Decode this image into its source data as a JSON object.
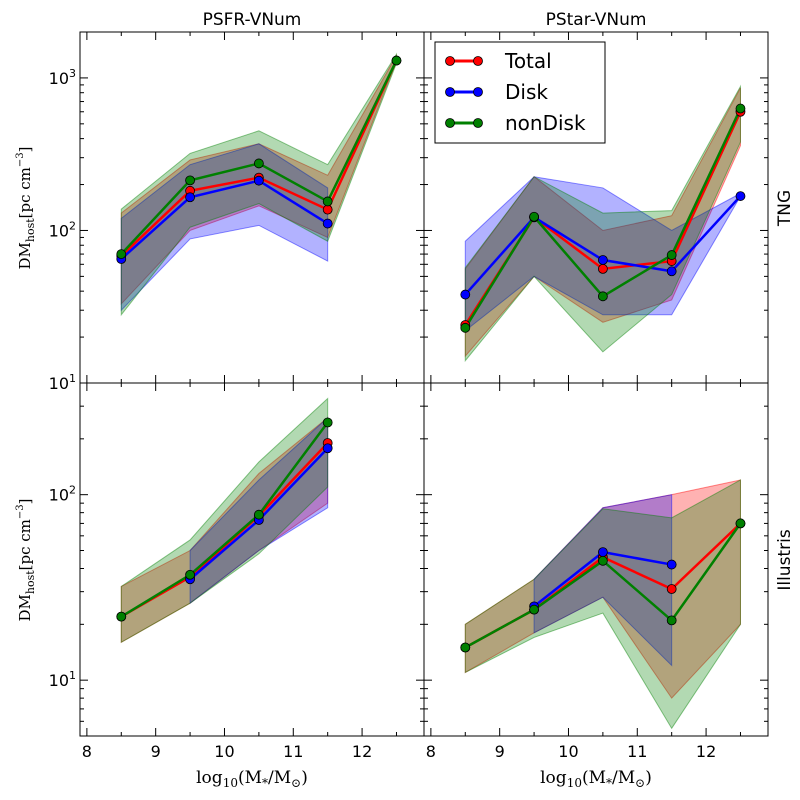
{
  "figure": {
    "col_titles": [
      "PSFR-VNum",
      "PStar-VNum"
    ],
    "row_labels": [
      "TNG",
      "Illustris"
    ],
    "xlabel_main": "log",
    "xlabel_sub": "10",
    "xlabel_rest": "(M",
    "xlabel_star": "*",
    "xlabel_slash": "/M",
    "xlabel_sun": "⊙",
    "xlabel_close": ")",
    "ylabel_main": "DM",
    "ylabel_sub": "host",
    "ylabel_unit": "[pc cm",
    "ylabel_exp": "−3",
    "ylabel_close": "]"
  },
  "legend": {
    "entries": [
      {
        "label": "Total",
        "color": "#ff0000"
      },
      {
        "label": "Disk",
        "color": "#0000ff"
      },
      {
        "label": "nonDisk",
        "color": "#008000"
      }
    ]
  },
  "chart_data": [
    {
      "type": "line",
      "panel": "TNG / PSFR-VNum",
      "xlim": [
        7.9,
        12.9
      ],
      "ylim": [
        10,
        2000
      ],
      "yscale": "log",
      "xticks": [
        8,
        9,
        10,
        11,
        12
      ],
      "ytick_labels": [
        {
          "base": "10",
          "exp": "1",
          "value": 10
        },
        {
          "base": "10",
          "exp": "2",
          "value": 100
        },
        {
          "base": "10",
          "exp": "3",
          "value": 1000
        }
      ],
      "series": [
        {
          "name": "Total",
          "color": "#ff0000",
          "x": [
            8.5,
            9.5,
            10.5,
            11.5,
            12.5
          ],
          "values": [
            68,
            182,
            222,
            137,
            1300
          ],
          "band_low": [
            33,
            100,
            145,
            90,
            1300
          ],
          "band_high": [
            130,
            290,
            370,
            230,
            1400
          ]
        },
        {
          "name": "Disk",
          "color": "#0000ff",
          "x": [
            8.5,
            9.5,
            10.5,
            11.5
          ],
          "values": [
            65,
            165,
            212,
            111
          ],
          "band_low": [
            30,
            88,
            108,
            63
          ],
          "band_high": [
            120,
            270,
            370,
            190
          ]
        },
        {
          "name": "nonDisk",
          "color": "#008000",
          "x": [
            8.5,
            9.5,
            10.5,
            11.5,
            12.5
          ],
          "values": [
            70,
            213,
            275,
            155,
            1300
          ],
          "band_low": [
            28,
            105,
            150,
            85,
            1250
          ],
          "band_high": [
            138,
            320,
            450,
            270,
            1430
          ]
        }
      ]
    },
    {
      "type": "line",
      "panel": "TNG / PStar-VNum",
      "xlim": [
        7.9,
        12.9
      ],
      "ylim": [
        10,
        2000
      ],
      "yscale": "log",
      "xticks": [
        8,
        9,
        10,
        11,
        12
      ],
      "ytick_labels": [],
      "series": [
        {
          "name": "Total",
          "color": "#ff0000",
          "x": [
            8.5,
            9.5,
            10.5,
            11.5,
            12.5
          ],
          "values": [
            24,
            122,
            56,
            63,
            600
          ],
          "band_low": [
            15,
            50,
            25,
            35,
            360
          ],
          "band_high": [
            56,
            225,
            100,
            125,
            860
          ]
        },
        {
          "name": "Disk",
          "color": "#0000ff",
          "x": [
            8.5,
            9.5,
            10.5,
            11.5,
            12.5
          ],
          "values": [
            38,
            122,
            64,
            54,
            168
          ],
          "band_low": [
            22,
            50,
            28,
            28,
            168
          ],
          "band_high": [
            85,
            225,
            190,
            100,
            175
          ]
        },
        {
          "name": "nonDisk",
          "color": "#008000",
          "x": [
            8.5,
            9.5,
            10.5,
            11.5,
            12.5
          ],
          "values": [
            23,
            123,
            37,
            69,
            630
          ],
          "band_low": [
            14,
            50,
            16,
            38,
            380
          ],
          "band_high": [
            57,
            225,
            130,
            135,
            880
          ]
        }
      ]
    },
    {
      "type": "line",
      "panel": "Illustris / PSFR-VNum",
      "xlim": [
        7.9,
        12.9
      ],
      "ylim": [
        5,
        400
      ],
      "yscale": "log",
      "xticks": [
        8,
        9,
        10,
        11,
        12
      ],
      "ytick_labels": [
        {
          "base": "10",
          "exp": "1",
          "value": 10
        },
        {
          "base": "10",
          "exp": "2",
          "value": 100
        }
      ],
      "series": [
        {
          "name": "Total",
          "color": "#ff0000",
          "x": [
            8.5,
            9.5,
            10.5,
            11.5
          ],
          "values": [
            22,
            36,
            77,
            190
          ],
          "band_low": [
            16,
            26,
            50,
            90
          ],
          "band_high": [
            32,
            50,
            130,
            260
          ]
        },
        {
          "name": "Disk",
          "color": "#0000ff",
          "x": [
            9.5,
            10.5,
            11.5
          ],
          "values": [
            35,
            73,
            178
          ],
          "band_low": [
            26,
            50,
            85
          ],
          "band_high": [
            50,
            120,
            260
          ]
        },
        {
          "name": "nonDisk",
          "color": "#008000",
          "x": [
            8.5,
            9.5,
            10.5,
            11.5
          ],
          "values": [
            22,
            37,
            78,
            245
          ],
          "band_low": [
            16,
            26,
            48,
            110
          ],
          "band_high": [
            32,
            57,
            150,
            330
          ]
        }
      ]
    },
    {
      "type": "line",
      "panel": "Illustris / PStar-VNum",
      "xlim": [
        7.9,
        12.9
      ],
      "ylim": [
        5,
        400
      ],
      "yscale": "log",
      "xticks": [
        8,
        9,
        10,
        11,
        12
      ],
      "ytick_labels": [],
      "series": [
        {
          "name": "Total",
          "color": "#ff0000",
          "x": [
            8.5,
            9.5,
            10.5,
            11.5,
            12.5
          ],
          "values": [
            15,
            24,
            46,
            31,
            70
          ],
          "band_low": [
            11,
            18,
            28,
            8,
            20
          ],
          "band_high": [
            20,
            35,
            85,
            100,
            120
          ]
        },
        {
          "name": "Disk",
          "color": "#0000ff",
          "x": [
            9.5,
            10.5,
            11.5
          ],
          "values": [
            25,
            49,
            42
          ],
          "band_low": [
            18,
            28,
            12
          ],
          "band_high": [
            35,
            85,
            100
          ]
        },
        {
          "name": "nonDisk",
          "color": "#008000",
          "x": [
            8.5,
            9.5,
            10.5,
            11.5,
            12.5
          ],
          "values": [
            15,
            24,
            44,
            21,
            70
          ],
          "band_low": [
            11,
            17,
            23,
            5.5,
            20
          ],
          "band_high": [
            20,
            35,
            84,
            75,
            120
          ]
        }
      ]
    }
  ]
}
